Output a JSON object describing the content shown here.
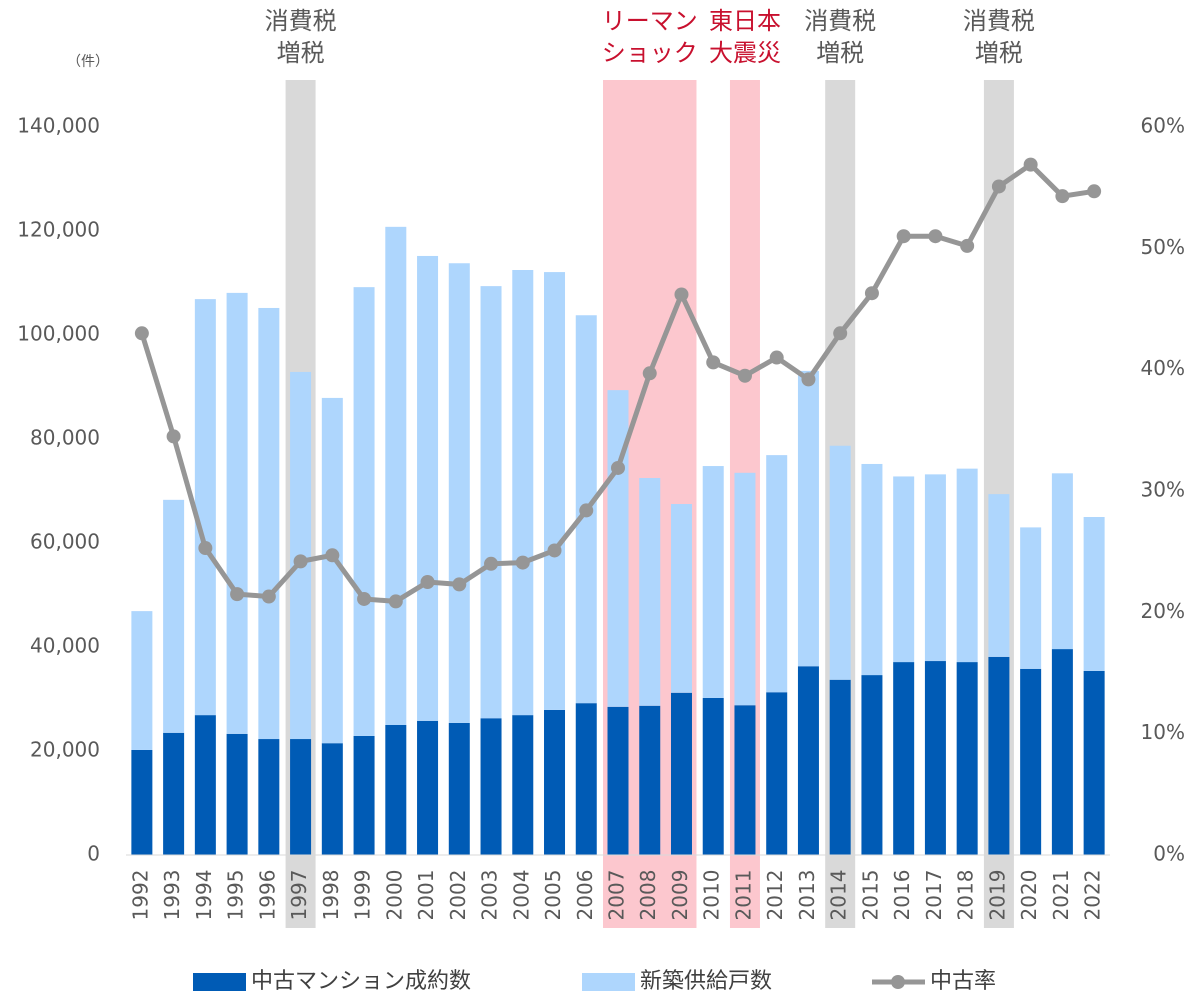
{
  "chart_data": {
    "type": "bar-line",
    "y_unit": "（件）",
    "categories": [
      "1992",
      "1993",
      "1994",
      "1995",
      "1996",
      "1997",
      "1998",
      "1999",
      "2000",
      "2001",
      "2002",
      "2003",
      "2004",
      "2005",
      "2006",
      "2007",
      "2008",
      "2009",
      "2010",
      "2011",
      "2012",
      "2013",
      "2014",
      "2015",
      "2016",
      "2017",
      "2018",
      "2019",
      "2020",
      "2021",
      "2022"
    ],
    "series": [
      {
        "name": "中古マンション成約数",
        "type": "bar",
        "color": "#005bb5",
        "values": [
          20200,
          23500,
          26900,
          23300,
          22300,
          22300,
          21500,
          22900,
          25000,
          25800,
          25400,
          26300,
          26900,
          27900,
          29200,
          28500,
          28700,
          31200,
          30200,
          28800,
          31300,
          36300,
          33700,
          34600,
          37100,
          37300,
          37100,
          38100,
          35800,
          39600,
          35400
        ]
      },
      {
        "name": "新築供給戸数",
        "type": "bar",
        "color": "#aed6fd",
        "values": [
          26700,
          44800,
          80000,
          84800,
          82900,
          70600,
          66400,
          86300,
          95800,
          89400,
          88400,
          83100,
          85600,
          84200,
          74600,
          60900,
          43800,
          36300,
          44600,
          44700,
          45600,
          56800,
          45000,
          40600,
          35700,
          35900,
          37200,
          31300,
          27200,
          33800,
          29600
        ]
      },
      {
        "name": "中古率",
        "type": "line",
        "axis": "y2",
        "color": "#969696",
        "values": [
          43.0,
          34.5,
          25.3,
          21.5,
          21.3,
          24.2,
          24.7,
          21.1,
          20.9,
          22.5,
          22.3,
          24.0,
          24.1,
          25.1,
          28.4,
          31.9,
          39.7,
          46.2,
          40.6,
          39.5,
          41.0,
          39.2,
          43.0,
          46.3,
          51.0,
          51.0,
          50.2,
          55.1,
          56.9,
          54.3,
          54.7
        ]
      }
    ],
    "ylim": [
      0,
      140000
    ],
    "yticks": [
      0,
      {
        "value": 20000,
        "label": "20,000"
      },
      {
        "value": 40000,
        "label": "40,000"
      },
      {
        "value": 60000,
        "label": "60,000"
      },
      {
        "value": 80000,
        "label": "80,000"
      },
      {
        "value": 100000,
        "label": "100,000"
      },
      {
        "value": 120000,
        "label": "120,000"
      },
      {
        "value": 140000,
        "label": "140,000"
      }
    ],
    "y2lim": [
      0,
      60
    ],
    "y2ticks": [
      {
        "value": 0,
        "label": "0%"
      },
      {
        "value": 10,
        "label": "10%"
      },
      {
        "value": 20,
        "label": "20%"
      },
      {
        "value": 30,
        "label": "30%"
      },
      {
        "value": 40,
        "label": "40%"
      },
      {
        "value": 50,
        "label": "50%"
      },
      {
        "value": 60,
        "label": "60%"
      }
    ],
    "highlights": [
      {
        "years": [
          "1997"
        ],
        "label": [
          "消費税",
          "増税"
        ],
        "color": "#d9d9d9",
        "text_color": "#595959"
      },
      {
        "years": [
          "2007",
          "2009"
        ],
        "label": [
          "リーマン",
          "ショック"
        ],
        "color": "#fcc7ce",
        "text_color": "#c8102e"
      },
      {
        "years": [
          "2011"
        ],
        "label": [
          "東日本",
          "大震災"
        ],
        "color": "#fcc7ce",
        "text_color": "#c8102e"
      },
      {
        "years": [
          "2014"
        ],
        "label": [
          "消費税",
          "増税"
        ],
        "color": "#d9d9d9",
        "text_color": "#595959"
      },
      {
        "years": [
          "2019"
        ],
        "label": [
          "消費税",
          "増税"
        ],
        "color": "#d9d9d9",
        "text_color": "#595959"
      }
    ],
    "legend": "bottom"
  }
}
